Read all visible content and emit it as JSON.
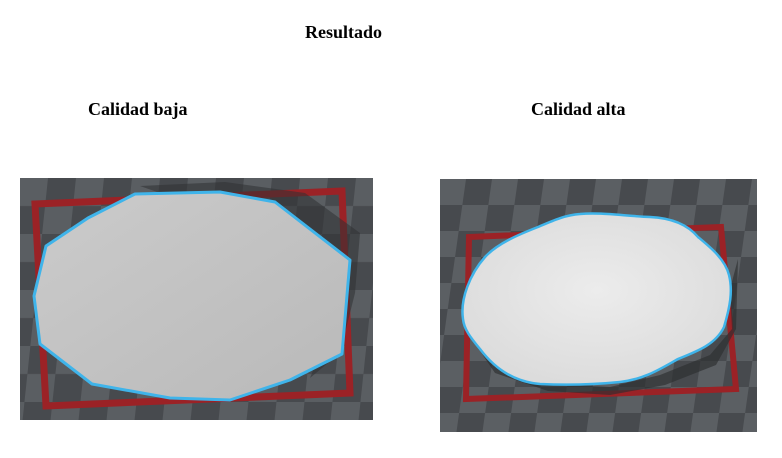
{
  "title": "Resultado",
  "panels": [
    {
      "label": "Calidad baja"
    },
    {
      "label": "Calidad alta"
    }
  ],
  "colors": {
    "background": "#ffffff",
    "checker_dark": "#474a4e",
    "checker_light": "#5b5f63",
    "frame_red": "#9b2226",
    "outline_blue": "#3fb4ea",
    "shape_gray_low": "#c2c2c2",
    "shape_gray_high": "#e6e6e6"
  },
  "icons": [
    "low-quality-mesh-preview",
    "high-quality-mesh-preview"
  ]
}
